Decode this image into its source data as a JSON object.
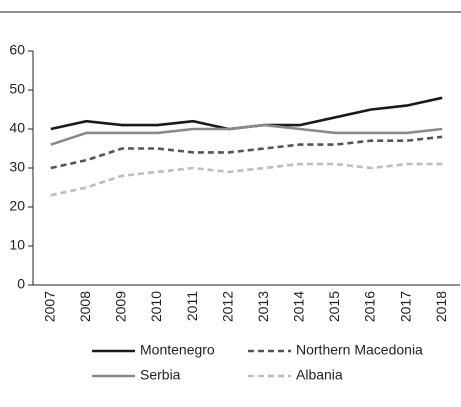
{
  "chart_data": {
    "type": "line",
    "categories": [
      "2007",
      "2008",
      "2009",
      "2010",
      "2011",
      "2012",
      "2013",
      "2014",
      "2015",
      "2016",
      "2017",
      "2018"
    ],
    "series": [
      {
        "name": "Montenegro",
        "color": "#1a1a1a",
        "dashed": false,
        "values": [
          40,
          42,
          41,
          41,
          42,
          40,
          41,
          41,
          43,
          45,
          46,
          48
        ]
      },
      {
        "name": "Northern Macedonia",
        "color": "#555555",
        "dashed": true,
        "values": [
          30,
          32,
          35,
          35,
          34,
          34,
          35,
          36,
          36,
          37,
          37,
          38
        ]
      },
      {
        "name": "Serbia",
        "color": "#8a8a8a",
        "dashed": false,
        "values": [
          36,
          39,
          39,
          39,
          40,
          40,
          41,
          40,
          39,
          39,
          39,
          40
        ]
      },
      {
        "name": "Albania",
        "color": "#bdbdbd",
        "dashed": true,
        "values": [
          23,
          25,
          28,
          29,
          30,
          29,
          30,
          31,
          31,
          30,
          31,
          31
        ]
      }
    ],
    "ylim": [
      0,
      60
    ],
    "yticks": [
      0,
      10,
      20,
      30,
      40,
      50,
      60
    ],
    "grid": false
  }
}
